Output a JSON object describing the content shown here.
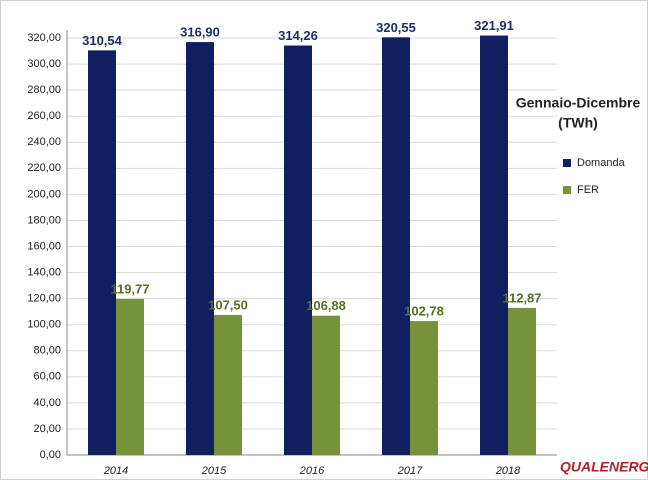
{
  "chart_data": {
    "type": "bar",
    "title": "Gennaio-Dicembre",
    "subtitle": "(TWh)",
    "watermark": "QUALENERGIA.it",
    "categories": [
      "2014",
      "2015",
      "2016",
      "2017",
      "2018"
    ],
    "series": [
      {
        "name": "Domanda",
        "color": "#0f1f5f",
        "label_color": "#1f2f66",
        "values": [
          310.54,
          316.9,
          314.26,
          320.55,
          321.91
        ],
        "value_labels": [
          "310,54",
          "316,90",
          "314,26",
          "320,55",
          "321,91"
        ]
      },
      {
        "name": "FER",
        "color": "#76933c",
        "label_color": "#55702a",
        "values": [
          119.77,
          107.5,
          106.88,
          102.78,
          112.87
        ],
        "value_labels": [
          "119,77",
          "107,50",
          "106,88",
          "102,78",
          "112,87"
        ]
      }
    ],
    "ylim": [
      0,
      330
    ],
    "yticks": [
      {
        "value": 0,
        "label": "0,00"
      },
      {
        "value": 20,
        "label": "20,00"
      },
      {
        "value": 40,
        "label": "40,00"
      },
      {
        "value": 60,
        "label": "60,00"
      },
      {
        "value": 80,
        "label": "80,00"
      },
      {
        "value": 100,
        "label": "100,00"
      },
      {
        "value": 120,
        "label": "120,00"
      },
      {
        "value": 140,
        "label": "140,00"
      },
      {
        "value": 160,
        "label": "160,00"
      },
      {
        "value": 180,
        "label": "180,00"
      },
      {
        "value": 200,
        "label": "200,00"
      },
      {
        "value": 220,
        "label": "220,00"
      },
      {
        "value": 240,
        "label": "240,00"
      },
      {
        "value": 260,
        "label": "260,00"
      },
      {
        "value": 280,
        "label": "280,00"
      },
      {
        "value": 300,
        "label": "300,00"
      },
      {
        "value": 320,
        "label": "320,00"
      }
    ],
    "grid": true,
    "legend": "right"
  }
}
